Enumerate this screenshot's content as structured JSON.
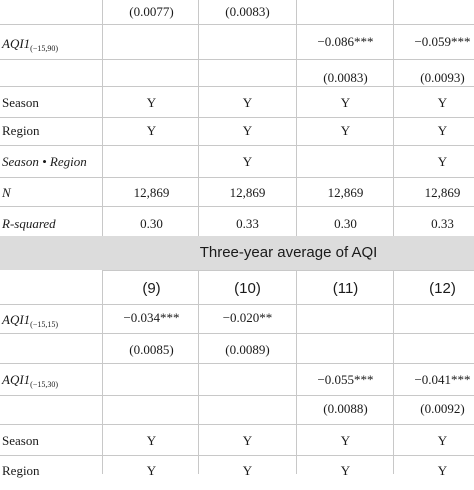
{
  "top_rows": {
    "se_row_a": [
      "(0.0077)",
      "(0.0083)",
      "",
      ""
    ],
    "aqi90_label_main": "AQI1",
    "aqi90_label_sub": "(−15,90)",
    "aqi90_coef": [
      "",
      "",
      "−0.086***",
      "−0.059***"
    ],
    "aqi90_se": [
      "",
      "",
      "(0.0083)",
      "(0.0093)"
    ],
    "season": {
      "label": "Season",
      "values": [
        "Y",
        "Y",
        "Y",
        "Y"
      ]
    },
    "region": {
      "label": "Region",
      "values": [
        "Y",
        "Y",
        "Y",
        "Y"
      ]
    },
    "season_region": {
      "label": "Season • Region",
      "values": [
        "",
        "Y",
        "",
        "Y"
      ]
    },
    "n": {
      "label": "N",
      "values": [
        "12,869",
        "12,869",
        "12,869",
        "12,869"
      ]
    },
    "rsq": {
      "label": "R-squared",
      "values": [
        "0.30",
        "0.33",
        "0.30",
        "0.33"
      ]
    }
  },
  "panel": {
    "title": "Three-year average of AQI",
    "columns": [
      "(9)",
      "(10)",
      "(11)",
      "(12)"
    ]
  },
  "bottom_rows": {
    "aqi15_label_main": "AQI1",
    "aqi15_label_sub": "(−15,15)",
    "aqi15_coef": [
      "−0.034***",
      "−0.020**",
      "",
      ""
    ],
    "aqi15_se": [
      "(0.0085)",
      "(0.0089)",
      "",
      ""
    ],
    "aqi30_label_main": "AQI1",
    "aqi30_label_sub": "(−15,30)",
    "aqi30_coef": [
      "",
      "",
      "−0.055***",
      "−0.041***"
    ],
    "aqi30_se": [
      "",
      "",
      "(0.0088)",
      "(0.0092)"
    ],
    "season": {
      "label": "Season",
      "values": [
        "Y",
        "Y",
        "Y",
        "Y"
      ]
    },
    "region": {
      "label": "Region",
      "values": [
        "Y",
        "Y",
        "Y",
        "Y"
      ]
    }
  }
}
